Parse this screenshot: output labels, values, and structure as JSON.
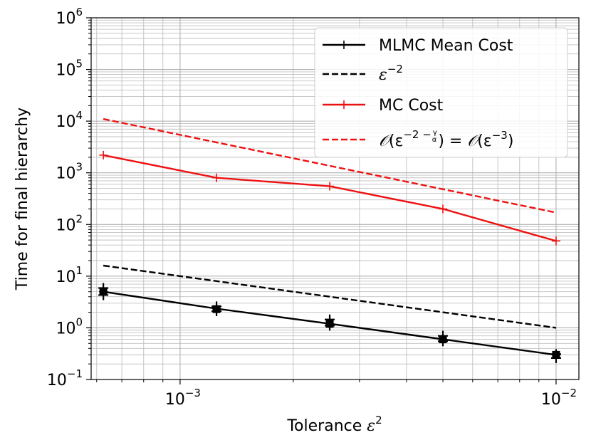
{
  "chart_data": {
    "type": "line",
    "xscale": "log",
    "yscale": "log",
    "xlim": [
      0.00058,
      0.0115
    ],
    "ylim": [
      0.1,
      1000000
    ],
    "xlabel": {
      "text": "Tolerance",
      "symbol": "ε",
      "power": "2"
    },
    "ylabel": "Time for final hierarchy",
    "x_ticks": [
      {
        "value": 0.001,
        "base": "10",
        "exp": "−3"
      },
      {
        "value": 0.01,
        "base": "10",
        "exp": "−2"
      }
    ],
    "y_ticks": [
      {
        "value": 0.1,
        "base": "10",
        "exp": "−1"
      },
      {
        "value": 1,
        "base": "10",
        "exp": "0"
      },
      {
        "value": 10,
        "base": "10",
        "exp": "1"
      },
      {
        "value": 100,
        "base": "10",
        "exp": "2"
      },
      {
        "value": 1000,
        "base": "10",
        "exp": "3"
      },
      {
        "value": 10000,
        "base": "10",
        "exp": "4"
      },
      {
        "value": 100000,
        "base": "10",
        "exp": "5"
      },
      {
        "value": 1000000,
        "base": "10",
        "exp": "6"
      }
    ],
    "grid": true,
    "legend_position": "top-right",
    "series": [
      {
        "name": "MLMC Mean Cost",
        "color": "#000000",
        "linestyle": "solid",
        "marker": "plus",
        "x": [
          0.000625,
          0.00125,
          0.0025,
          0.005,
          0.01
        ],
        "y": [
          5.0,
          2.35,
          1.2,
          0.6,
          0.3
        ],
        "square_markers": [
          {
            "x": 0.000625,
            "y": 5.0
          },
          {
            "x": 0.00125,
            "y": 2.3
          },
          {
            "x": 0.0025,
            "y": 1.2
          },
          {
            "x": 0.005,
            "y": 0.6
          },
          {
            "x": 0.01,
            "y": 0.3
          }
        ],
        "scatter_plus": [
          {
            "x": 0.000625,
            "y": 4.3
          },
          {
            "x": 0.000625,
            "y": 5.9
          },
          {
            "x": 0.00125,
            "y": 2.1
          },
          {
            "x": 0.00125,
            "y": 2.6
          },
          {
            "x": 0.0025,
            "y": 1.1
          },
          {
            "x": 0.0025,
            "y": 1.45
          },
          {
            "x": 0.005,
            "y": 0.55
          },
          {
            "x": 0.005,
            "y": 0.7
          },
          {
            "x": 0.01,
            "y": 0.26
          },
          {
            "x": 0.01,
            "y": 0.31
          }
        ]
      },
      {
        "name": "ε^-2",
        "color": "#000000",
        "linestyle": "dashed",
        "marker": "none",
        "x": [
          0.000625,
          0.01
        ],
        "y": [
          16.0,
          1.0
        ]
      },
      {
        "name": "MC Cost",
        "color": "#ee1111",
        "linestyle": "solid",
        "marker": "plus",
        "x": [
          0.000625,
          0.00125,
          0.0025,
          0.005,
          0.01
        ],
        "y": [
          2200,
          800,
          550,
          200,
          48
        ]
      },
      {
        "name": "O(ε^(-2-γ/α)) = O(ε^-3)",
        "color": "#ee1111",
        "linestyle": "dashed",
        "marker": "none",
        "x": [
          0.000625,
          0.01
        ],
        "y": [
          11000,
          170
        ]
      }
    ],
    "legend": {
      "items": [
        {
          "label": "MLMC Mean Cost"
        },
        {
          "prefix": "ε",
          "sup": "−2"
        },
        {
          "label": "MC Cost"
        },
        {
          "cal1": "𝒪",
          "open1": "(ε",
          "sup1": "−2 −",
          "frac_num": "γ",
          "frac_den": "α",
          "mid": ") = ",
          "cal2": "𝒪",
          "open2": "(ε",
          "sup2": "−3",
          "close2": ")"
        }
      ]
    }
  }
}
